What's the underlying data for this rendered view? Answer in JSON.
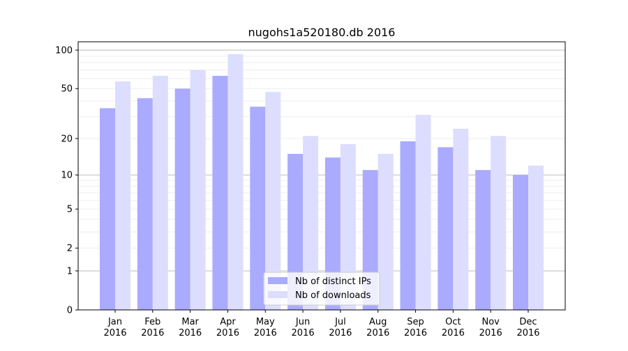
{
  "chart_data": {
    "type": "bar",
    "title": "nugohs1a520180.db 2016",
    "xlabel": "",
    "ylabel": "",
    "yscale": "log(1+y)",
    "ylim": [
      0,
      110
    ],
    "yticks": [
      0,
      1,
      2,
      5,
      10,
      20,
      50,
      100
    ],
    "grid": true,
    "legend_position": "bottom-center",
    "categories": [
      "Jan\n2016",
      "Feb\n2016",
      "Mar\n2016",
      "Apr\n2016",
      "May\n2016",
      "Jun\n2016",
      "Jul\n2016",
      "Aug\n2016",
      "Sep\n2016",
      "Oct\n2016",
      "Nov\n2016",
      "Dec\n2016"
    ],
    "series": [
      {
        "name": "Nb of distinct IPs",
        "color": "#aaaaff",
        "values": [
          35,
          42,
          50,
          63,
          36,
          15,
          14,
          11,
          19,
          17,
          11,
          10
        ]
      },
      {
        "name": "Nb of downloads",
        "color": "#ddddff",
        "values": [
          57,
          63,
          70,
          93,
          47,
          21,
          18,
          15,
          31,
          24,
          21,
          12
        ]
      }
    ]
  }
}
